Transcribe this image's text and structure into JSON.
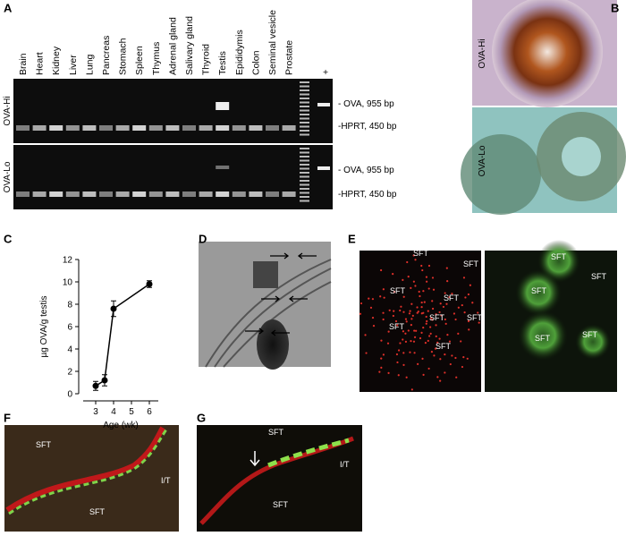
{
  "panel_labels": [
    "A",
    "B",
    "C",
    "D",
    "E",
    "F",
    "G"
  ],
  "panel_a": {
    "lanes": [
      "Brain",
      "Heart",
      "Kidney",
      "Liver",
      "Lung",
      "Pancreas",
      "Stomach",
      "Spleen",
      "Thymus",
      "Adrenal gland",
      "Salivary gland",
      "Thyroid",
      "Testis",
      "Epididymis",
      "Colon",
      "Seminal vesicle",
      "Prostate",
      "+"
    ],
    "rows": [
      "OVA-Hi",
      "OVA-Lo"
    ],
    "bands": [
      "- OVA, 955 bp",
      "-HPRT, 450 bp"
    ]
  },
  "panel_b": {
    "labels": [
      "OVA-Hi",
      "OVA-Lo"
    ]
  },
  "chart_data": {
    "type": "line",
    "x": [
      3,
      3.5,
      4,
      6
    ],
    "values": [
      0.7,
      1.2,
      7.6,
      9.8
    ],
    "errors": [
      0.4,
      0.5,
      0.7,
      0.3
    ],
    "color": "#000000",
    "xlabel": "Age (wk)",
    "ylabel": "µg OVA/g testis",
    "xlim": [
      2.5,
      6.5
    ],
    "xticks": [
      3,
      4,
      5,
      6
    ],
    "ylim": [
      0,
      12
    ],
    "yticks": [
      0,
      2,
      4,
      6,
      8,
      10,
      12
    ]
  },
  "panel_e": {
    "left_labels": [
      "SFT",
      "SFT",
      "SFT",
      "SFT",
      "SFT",
      "SFT",
      "SFT",
      "SFT"
    ],
    "right_labels": [
      "SFT",
      "SFT",
      "SFT",
      "SFT",
      "SFT"
    ]
  },
  "panel_f": {
    "labels": [
      "SFT",
      "SFT",
      "I/T"
    ]
  },
  "panel_g": {
    "labels": [
      "SFT",
      "SFT",
      "I/T"
    ]
  }
}
